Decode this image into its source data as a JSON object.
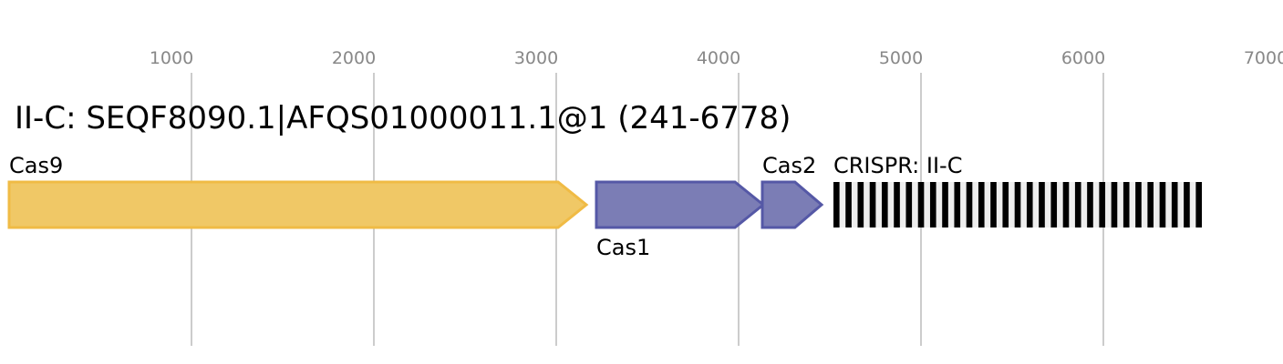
{
  "title": "II-C: SEQF8090.1|AFQS01000011.1@1 (241-6778)",
  "axis": {
    "ticks": [
      1000,
      2000,
      3000,
      4000,
      5000,
      6000,
      7000
    ],
    "range": [
      0,
      7000
    ]
  },
  "colors": {
    "cas9_fill": "#f0c866",
    "cas9_stroke": "#f0bb45",
    "cas12_fill": "#7b7db5",
    "cas12_stroke": "#5558a6",
    "grid": "#bbbbbb",
    "crispr_repeat": "#000000",
    "crispr_spacer": "#eeeeee"
  },
  "genes": [
    {
      "name": "Cas9",
      "start": 0,
      "end": 3165,
      "label_pos": "above",
      "color": "cas9"
    },
    {
      "name": "Cas1",
      "start": 3220,
      "end": 4135,
      "label_pos": "below",
      "color": "cas12"
    },
    {
      "name": "Cas2",
      "start": 4130,
      "end": 4455,
      "label_pos": "above",
      "color": "cas12"
    }
  ],
  "crispr": {
    "label": "CRISPR: II-C",
    "start": 4520,
    "end": 6540,
    "repeats": 31
  }
}
